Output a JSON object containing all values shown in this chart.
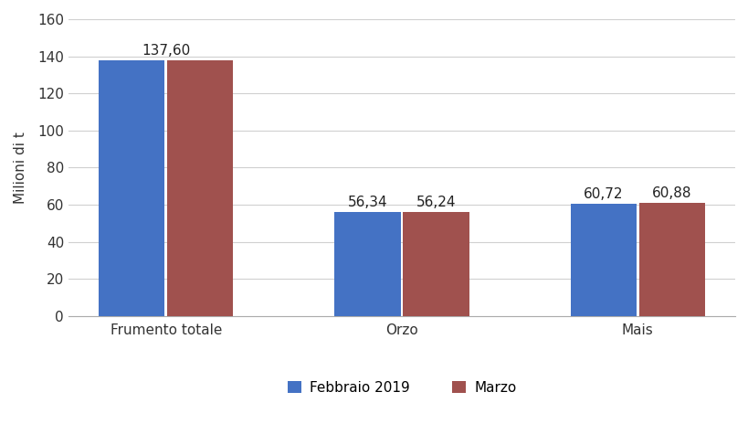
{
  "categories": [
    "Frumento totale",
    "Orzo",
    "Mais"
  ],
  "febbraio_values": [
    137.6,
    56.34,
    60.72
  ],
  "marzo_values": [
    137.6,
    56.24,
    60.88
  ],
  "febbraio_label": "Febbraio 2019",
  "marzo_label": "Marzo",
  "febbraio_color": "#4472C4",
  "marzo_color": "#A0514E",
  "ylabel": "Milioni di t",
  "ylim": [
    0,
    160
  ],
  "yticks": [
    0,
    20,
    40,
    60,
    80,
    100,
    120,
    140,
    160
  ],
  "bar_labels_febbraio": [
    "",
    "56,34",
    "60,72"
  ],
  "bar_labels_marzo": [
    "",
    "56,24",
    "60,88"
  ],
  "label_center": [
    "137,60",
    "",
    ""
  ],
  "background_color": "#ffffff",
  "grid_color": "#d0d0d0",
  "bar_width": 0.28,
  "label_fontsize": 11,
  "tick_fontsize": 11,
  "annotation_fontsize": 11
}
